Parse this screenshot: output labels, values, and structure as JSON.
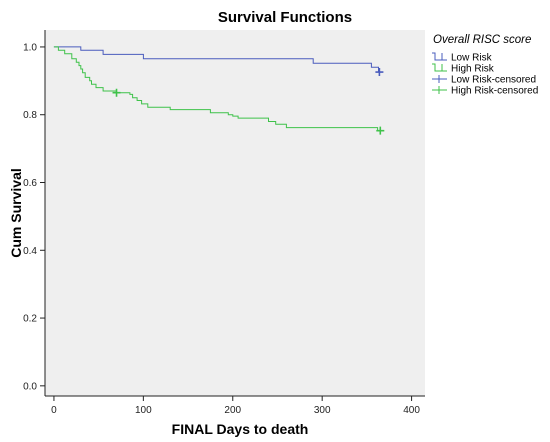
{
  "chart_data": {
    "type": "line",
    "subtype": "kaplan-meier step",
    "title": "Survival Functions",
    "xlabel": "FINAL Days to death",
    "ylabel": "Cum Survival",
    "xlim": [
      -10,
      415
    ],
    "ylim": [
      -0.03,
      1.05
    ],
    "xticks": [
      0,
      100,
      200,
      300,
      400
    ],
    "yticks": [
      0.0,
      0.2,
      0.4,
      0.6,
      0.8,
      1.0
    ],
    "xtick_labels": [
      "0",
      "100",
      "200",
      "300",
      "400"
    ],
    "ytick_labels": [
      "0.0",
      "0.2",
      "0.4",
      "0.6",
      "0.8",
      "1.0"
    ],
    "background": "#efefef",
    "grid": false,
    "legend": {
      "title": "Overall RISC score",
      "placement": "right-outside-top",
      "entries": [
        "Low Risk",
        "High Risk",
        "Low Risk-censored",
        "High Risk-censored"
      ]
    },
    "series": [
      {
        "name": "Low Risk",
        "color": "#4a5cbd",
        "steps": [
          [
            0,
            1.0
          ],
          [
            30,
            0.99
          ],
          [
            55,
            0.978
          ],
          [
            100,
            0.965
          ],
          [
            290,
            0.952
          ],
          [
            355,
            0.94
          ],
          [
            363,
            0.926
          ]
        ],
        "end_x": 365,
        "censored": [
          [
            364,
            0.926
          ]
        ]
      },
      {
        "name": "High Risk",
        "color": "#3fc24a",
        "steps": [
          [
            0,
            1.0
          ],
          [
            5,
            0.99
          ],
          [
            12,
            0.98
          ],
          [
            20,
            0.965
          ],
          [
            25,
            0.955
          ],
          [
            28,
            0.945
          ],
          [
            30,
            0.935
          ],
          [
            32,
            0.924
          ],
          [
            35,
            0.91
          ],
          [
            40,
            0.9
          ],
          [
            42,
            0.89
          ],
          [
            47,
            0.88
          ],
          [
            55,
            0.87
          ],
          [
            70,
            0.865
          ],
          [
            85,
            0.86
          ],
          [
            88,
            0.85
          ],
          [
            93,
            0.842
          ],
          [
            98,
            0.832
          ],
          [
            105,
            0.822
          ],
          [
            130,
            0.815
          ],
          [
            175,
            0.806
          ],
          [
            195,
            0.8
          ],
          [
            200,
            0.796
          ],
          [
            206,
            0.79
          ],
          [
            240,
            0.78
          ],
          [
            248,
            0.772
          ],
          [
            260,
            0.762
          ],
          [
            362,
            0.753
          ]
        ],
        "end_x": 365,
        "censored": [
          [
            70,
            0.865
          ],
          [
            365,
            0.753
          ]
        ]
      }
    ]
  }
}
